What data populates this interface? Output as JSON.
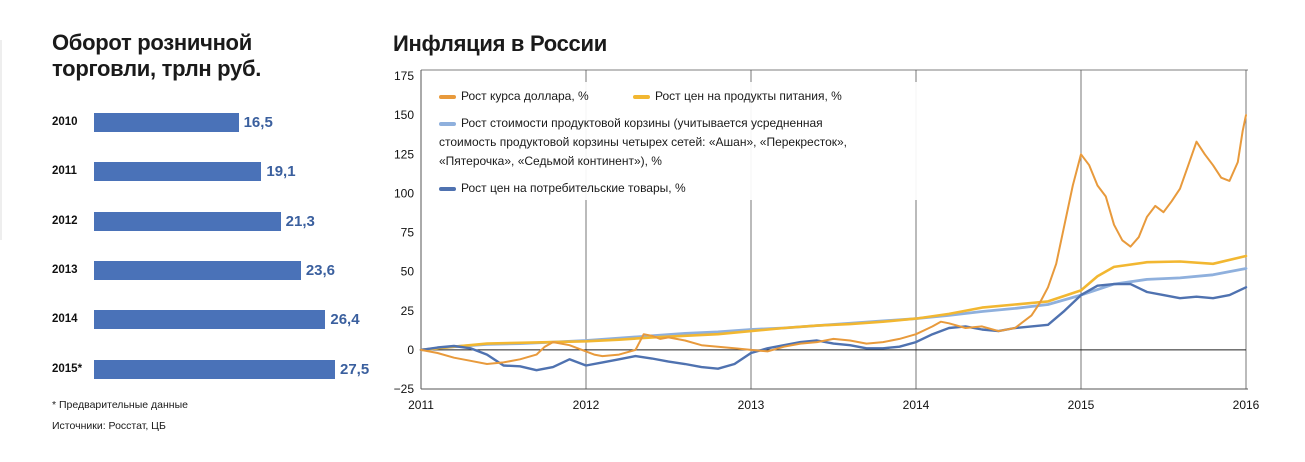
{
  "left": {
    "title_line1": "Оборот розничной",
    "title_line2": "торговли, трлн руб.",
    "footnote": "* Предварительные данные",
    "sources": "Источники:  Росстат, ЦБ"
  },
  "right": {
    "title": "Инфляция в России"
  },
  "colors": {
    "bar": "#4a72b8",
    "bar_value": "#3a5f9e",
    "dollar": "#e89a3c",
    "food": "#f2b731",
    "basket": "#8fb0dd",
    "cpi": "#4f72b0"
  },
  "chart_data": [
    {
      "type": "bar",
      "orientation": "horizontal",
      "title": "Оборот розничной торговли, трлн руб.",
      "categories": [
        "2010",
        "2011",
        "2012",
        "2013",
        "2014",
        "2015*"
      ],
      "values": [
        16.5,
        19.1,
        21.3,
        23.6,
        26.4,
        27.5
      ],
      "value_labels": [
        "16,5",
        "19,1",
        "21,3",
        "23,6",
        "26,4",
        "27,5"
      ]
    },
    {
      "type": "line",
      "title": "Инфляция в России",
      "x_ticks": [
        "2011",
        "2012",
        "2013",
        "2014",
        "2015",
        "2016"
      ],
      "xlim": [
        2011,
        2016
      ],
      "ylim": [
        -25,
        175
      ],
      "y_ticks": [
        175,
        150,
        125,
        100,
        75,
        50,
        25,
        0,
        -25
      ],
      "y_tick_labels": [
        "175",
        "150",
        "125",
        "100",
        "75",
        "50",
        "25",
        "0",
        "−25"
      ],
      "grid": "vertical at years",
      "legend_position": "top-left",
      "series": [
        {
          "name": "Рост курса доллара, %",
          "color": "#e89a3c",
          "x": [
            2011.0,
            2011.1,
            2011.2,
            2011.3,
            2011.4,
            2011.5,
            2011.6,
            2011.7,
            2011.75,
            2011.8,
            2011.9,
            2012.0,
            2012.05,
            2012.1,
            2012.2,
            2012.3,
            2012.35,
            2012.4,
            2012.45,
            2012.5,
            2012.6,
            2012.7,
            2012.8,
            2012.9,
            2013.0,
            2013.1,
            2013.2,
            2013.3,
            2013.4,
            2013.5,
            2013.6,
            2013.7,
            2013.8,
            2013.9,
            2014.0,
            2014.1,
            2014.15,
            2014.2,
            2014.3,
            2014.4,
            2014.5,
            2014.6,
            2014.7,
            2014.75,
            2014.8,
            2014.85,
            2014.9,
            2014.95,
            2015.0,
            2015.05,
            2015.1,
            2015.15,
            2015.2,
            2015.25,
            2015.3,
            2015.35,
            2015.4,
            2015.45,
            2015.5,
            2015.55,
            2015.6,
            2015.65,
            2015.7,
            2015.75,
            2015.8,
            2015.85,
            2015.9,
            2015.95,
            2015.98,
            2016.0
          ],
          "values": [
            0,
            -2,
            -5,
            -7,
            -9,
            -8,
            -6,
            -3,
            2,
            5,
            3,
            -1,
            -3,
            -4,
            -3,
            0,
            10,
            9,
            7,
            8,
            6,
            3,
            2,
            1,
            0,
            -1,
            2,
            4,
            5,
            7,
            6,
            4,
            5,
            7,
            10,
            15,
            18,
            17,
            14,
            15,
            12,
            14,
            22,
            30,
            40,
            55,
            80,
            105,
            125,
            118,
            105,
            98,
            80,
            70,
            66,
            72,
            85,
            92,
            88,
            95,
            103,
            118,
            133,
            125,
            118,
            110,
            108,
            120,
            140,
            150
          ]
        },
        {
          "name": "Рост цен на продукты питания, %",
          "color": "#f2b731",
          "x": [
            2011.0,
            2011.2,
            2011.4,
            2011.6,
            2011.8,
            2012.0,
            2012.2,
            2012.4,
            2012.6,
            2012.8,
            2013.0,
            2013.2,
            2013.4,
            2013.6,
            2013.8,
            2014.0,
            2014.2,
            2014.4,
            2014.6,
            2014.8,
            2015.0,
            2015.1,
            2015.2,
            2015.4,
            2015.6,
            2015.8,
            2016.0
          ],
          "values": [
            0,
            2,
            4,
            4.5,
            5,
            5.5,
            6.5,
            8,
            9,
            10,
            12,
            14,
            15.5,
            16.5,
            18,
            20,
            23,
            27,
            29,
            31,
            38,
            47,
            53,
            56,
            56.5,
            55,
            60
          ]
        },
        {
          "name": "Рост стоимости продуктовой корзины (учитывается усредненная стоимость продуктовой корзины четырех сетей: «Ашан», «Перекресток», «Пятерочка», «Седьмой континент»), %",
          "color": "#8fb0dd",
          "x": [
            2011.0,
            2011.2,
            2011.4,
            2011.6,
            2011.8,
            2012.0,
            2012.2,
            2012.4,
            2012.6,
            2012.8,
            2013.0,
            2013.2,
            2013.4,
            2013.6,
            2013.8,
            2014.0,
            2014.2,
            2014.4,
            2014.6,
            2014.8,
            2015.0,
            2015.2,
            2015.4,
            2015.6,
            2015.8,
            2016.0
          ],
          "values": [
            0,
            2,
            3.5,
            4,
            5,
            6,
            7.5,
            9,
            10.5,
            11.5,
            13,
            14,
            15.5,
            17,
            18.5,
            20,
            22,
            24.5,
            26.5,
            29,
            35,
            42,
            45,
            46,
            48,
            52
          ]
        },
        {
          "name": "Рост цен на потребительские товары, %",
          "color": "#4f72b0",
          "x": [
            2011.0,
            2011.1,
            2011.2,
            2011.3,
            2011.4,
            2011.5,
            2011.6,
            2011.7,
            2011.8,
            2011.9,
            2012.0,
            2012.1,
            2012.2,
            2012.3,
            2012.4,
            2012.5,
            2012.6,
            2012.7,
            2012.8,
            2012.9,
            2013.0,
            2013.1,
            2013.2,
            2013.3,
            2013.4,
            2013.5,
            2013.6,
            2013.7,
            2013.8,
            2013.9,
            2014.0,
            2014.1,
            2014.2,
            2014.3,
            2014.4,
            2014.5,
            2014.6,
            2014.7,
            2014.8,
            2014.9,
            2015.0,
            2015.1,
            2015.2,
            2015.3,
            2015.4,
            2015.5,
            2015.6,
            2015.7,
            2015.8,
            2015.9,
            2016.0
          ],
          "values": [
            0,
            1.5,
            2.5,
            1,
            -3,
            -10,
            -10.5,
            -13,
            -11,
            -6,
            -10,
            -8,
            -6,
            -4,
            -5.5,
            -7.5,
            -9,
            -11,
            -12,
            -9,
            -2,
            1,
            3,
            5,
            6,
            4,
            3,
            1,
            1,
            2,
            5,
            10,
            14,
            15,
            13,
            12,
            14,
            15,
            16,
            25,
            35,
            41,
            42,
            42,
            37,
            35,
            33,
            34,
            33,
            35,
            40
          ]
        }
      ]
    }
  ]
}
